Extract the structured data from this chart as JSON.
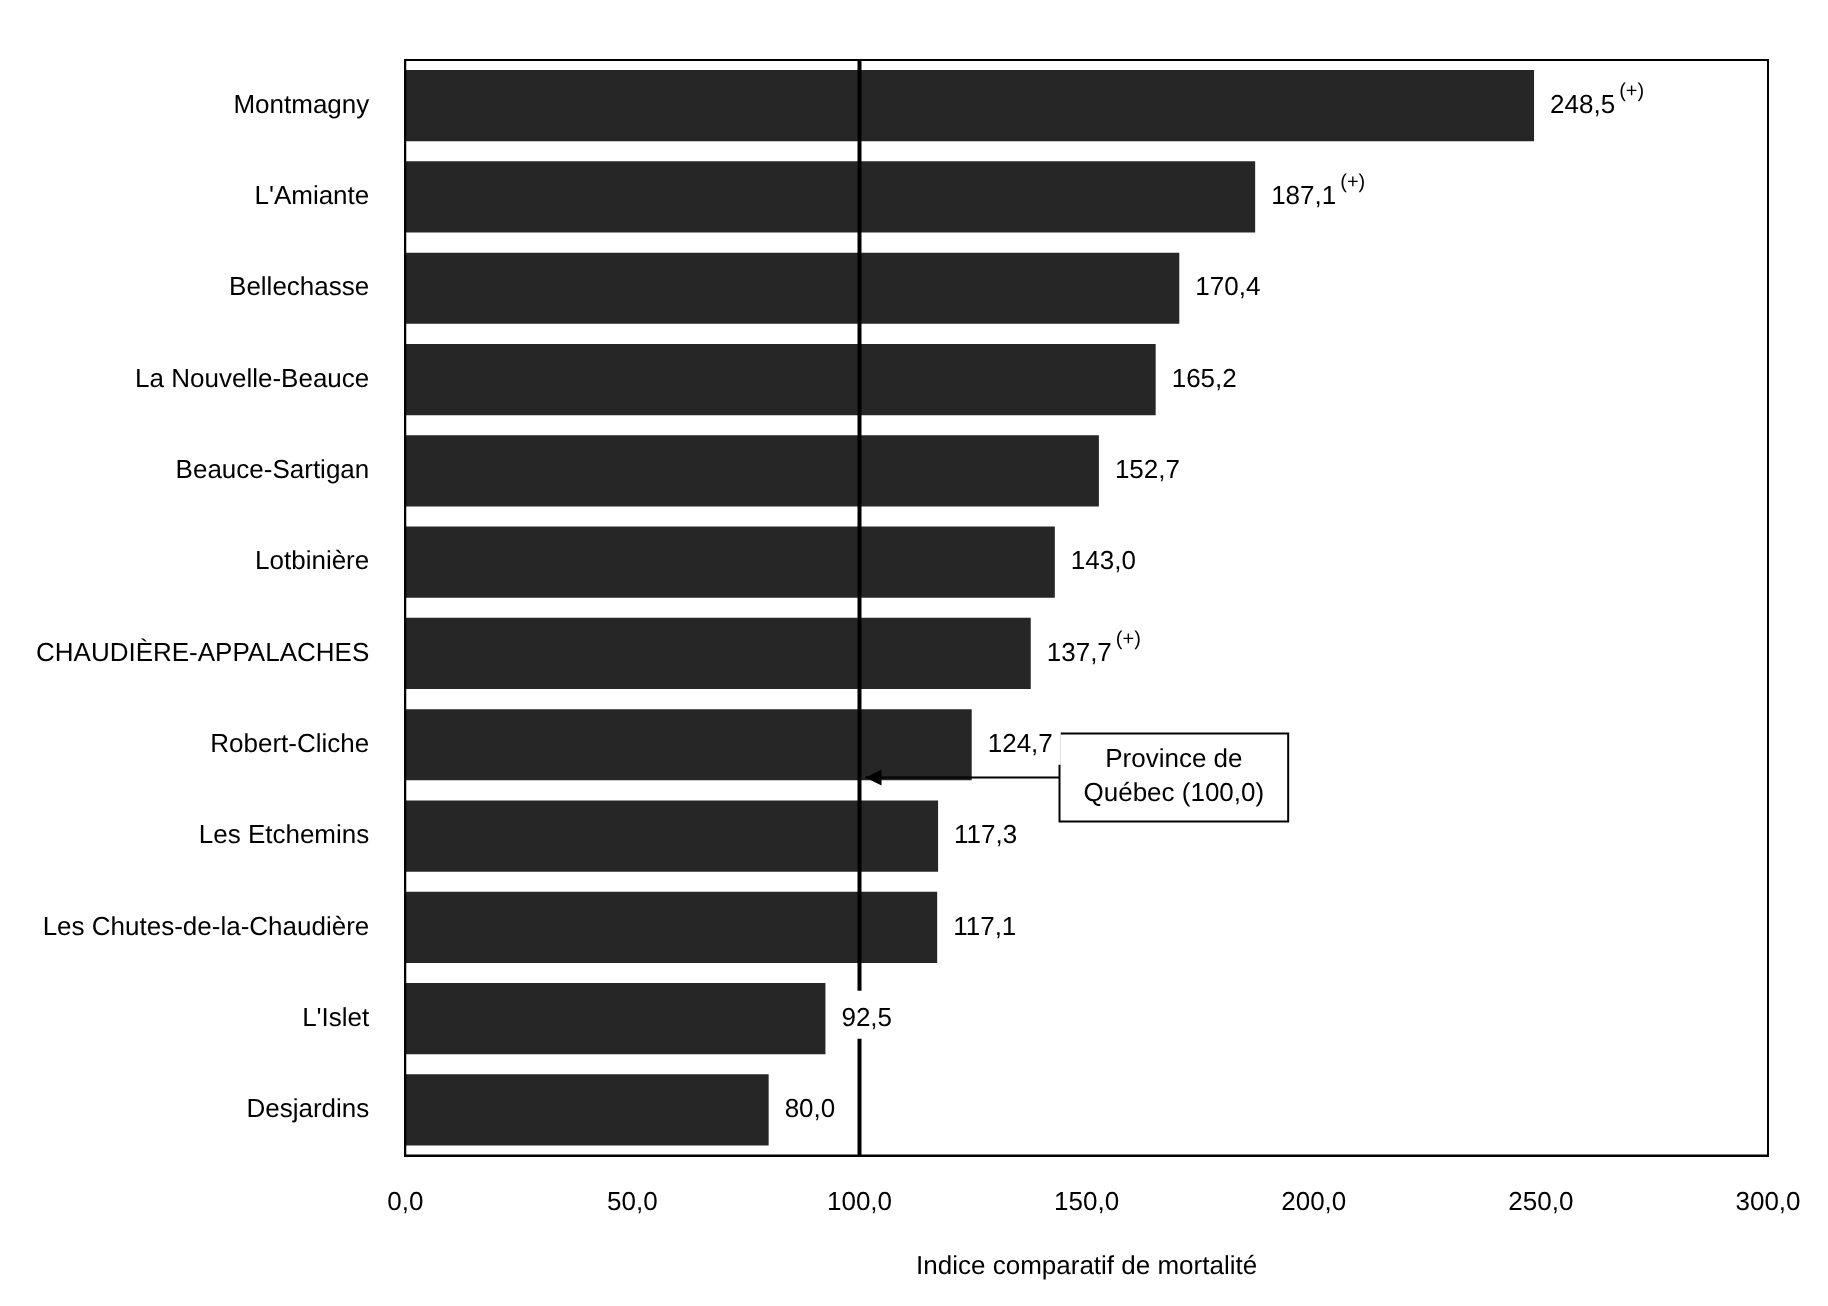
{
  "chart_data": {
    "type": "bar",
    "orientation": "horizontal",
    "xlabel": "Indice comparatif de mortalité",
    "categories": [
      "Montmagny",
      "L'Amiante",
      "Bellechasse",
      "La Nouvelle-Beauce",
      "Beauce-Sartigan",
      "Lotbinière",
      "CHAUDIÈRE-APPALACHES",
      "Robert-Cliche",
      "Les Etchemins",
      "Les Chutes-de-la-Chaudière",
      "L'Islet",
      "Desjardins"
    ],
    "values": [
      248.5,
      187.1,
      170.4,
      165.2,
      152.7,
      143.0,
      137.7,
      124.7,
      117.3,
      117.1,
      92.5,
      80.0
    ],
    "value_labels": [
      "248,5$^{(+)}$",
      "187,1$^{(+)}$",
      "170,4",
      "165,2",
      "152,7",
      "143,0",
      "137,7$^{(+)}$",
      "124,7",
      "117,3",
      "117,1",
      "92,5",
      "80,0"
    ],
    "color": "#262626",
    "xlim": [
      0,
      300
    ],
    "xticks": [
      {
        "value": 0,
        "label": "0,0"
      },
      {
        "value": 50,
        "label": "50,0"
      },
      {
        "value": 100,
        "label": "100,0"
      },
      {
        "value": 150,
        "label": "150,0"
      },
      {
        "value": 200,
        "label": "200,0"
      },
      {
        "value": 250,
        "label": "250,0"
      },
      {
        "value": 300,
        "label": "300,0"
      }
    ],
    "ref_lines": [
      {
        "axis": "x",
        "value": 100,
        "label": "Province de Québec (100,0)",
        "color": "#000000"
      }
    ],
    "grid": false,
    "legend": false
  }
}
